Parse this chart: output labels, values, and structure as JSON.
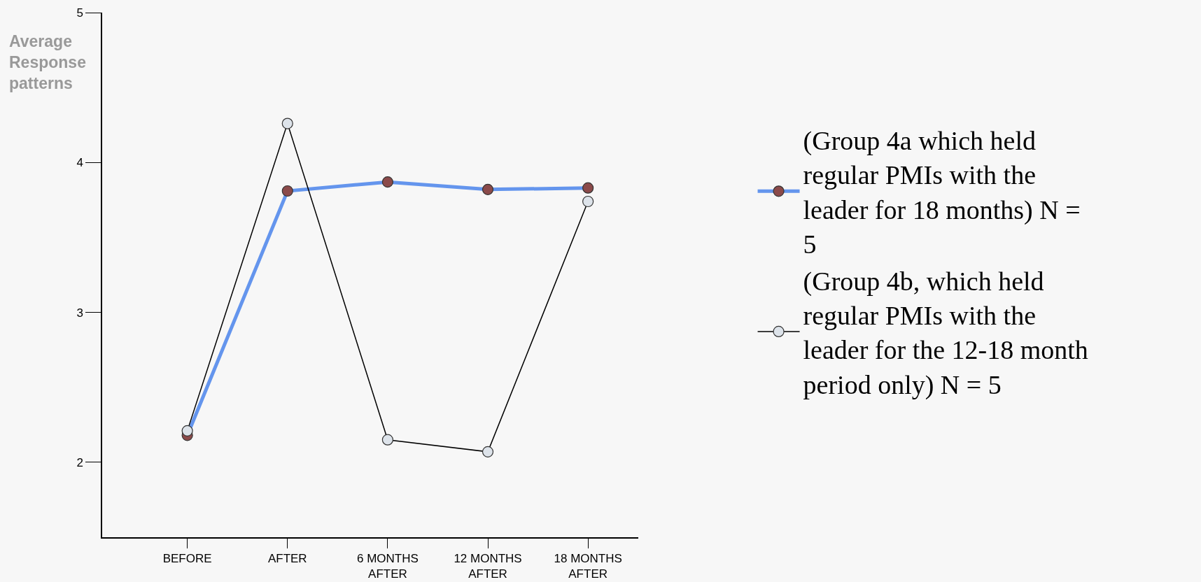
{
  "chart_data": {
    "type": "line",
    "ylabel": "Average Response patterns",
    "categories": [
      "BEFORE",
      "AFTER",
      "6 MONTHS AFTER",
      "12 MONTHS AFTER",
      "18 MONTHS AFTER"
    ],
    "series": [
      {
        "name": "(Group 4a which held regular PMIs with the leader for 18 months) N = 5",
        "color": "#6495ed",
        "values": [
          2.18,
          3.81,
          3.87,
          3.82,
          3.83
        ]
      },
      {
        "name": "(Group 4b, which held regular PMIs with the leader for the 12-18 month period only) N = 5",
        "color": "#000000",
        "values": [
          2.21,
          4.26,
          2.15,
          2.07,
          3.74
        ]
      }
    ],
    "ylim": [
      1.5,
      5
    ],
    "yticks": [
      2,
      3,
      4,
      5
    ],
    "grid": false,
    "legend": "right",
    "marker": "circle",
    "line_style": "solid"
  }
}
